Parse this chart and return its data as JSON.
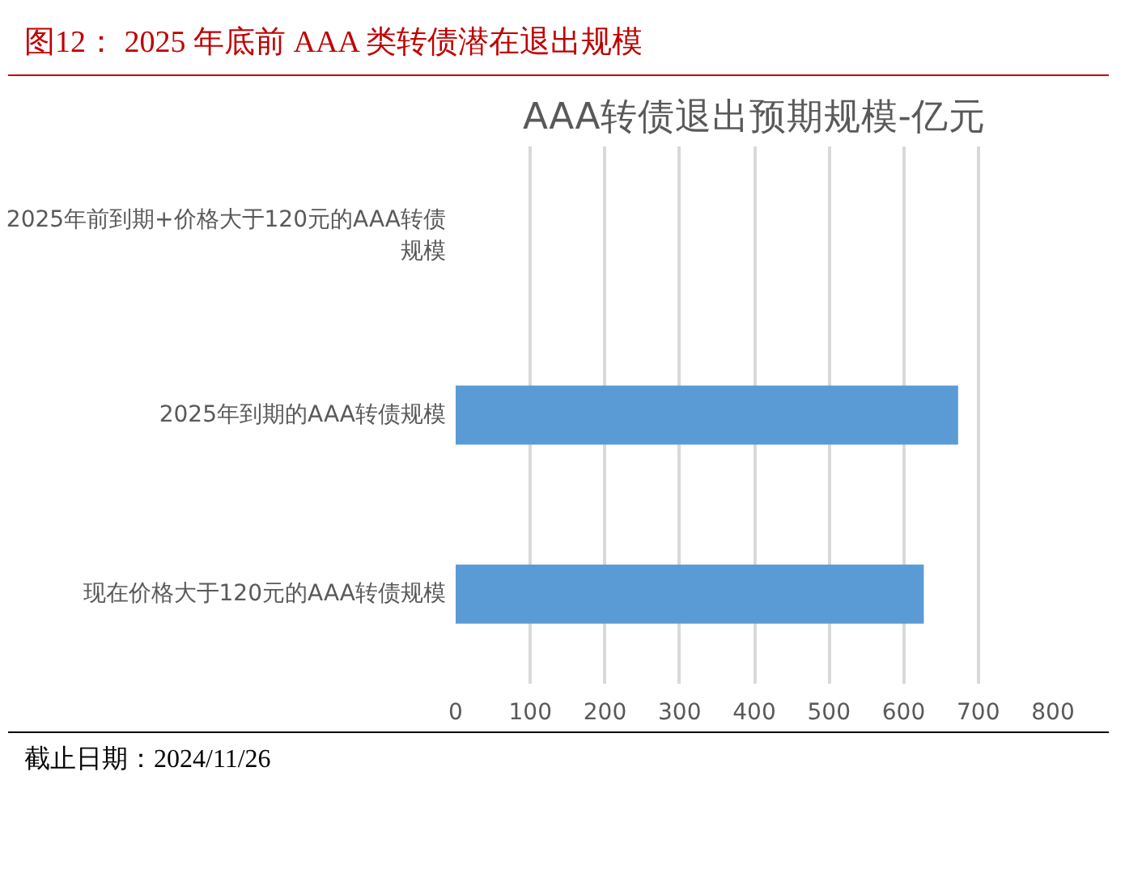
{
  "chart_data": {
    "type": "bar",
    "orientation": "horizontal",
    "title": "图12：  2025 年底前 AAA 类转债潜在退出规模",
    "subtitle": "AAA转债退出预期规模-亿元",
    "categories": [
      "2025年前到期+价格大于120元的AAA转债规模",
      "2025年到期的AAA转债规模",
      "现在价格大于120元的AAA转债规模"
    ],
    "values": [
      0,
      673,
      627
    ],
    "color": "#5b9bd5",
    "xlim": [
      0,
      800
    ],
    "xticks": [
      0,
      100,
      200,
      300,
      400,
      500,
      600,
      700,
      800
    ],
    "grid": "x",
    "annotations": [
      "截止日期：2024/11/26"
    ]
  }
}
